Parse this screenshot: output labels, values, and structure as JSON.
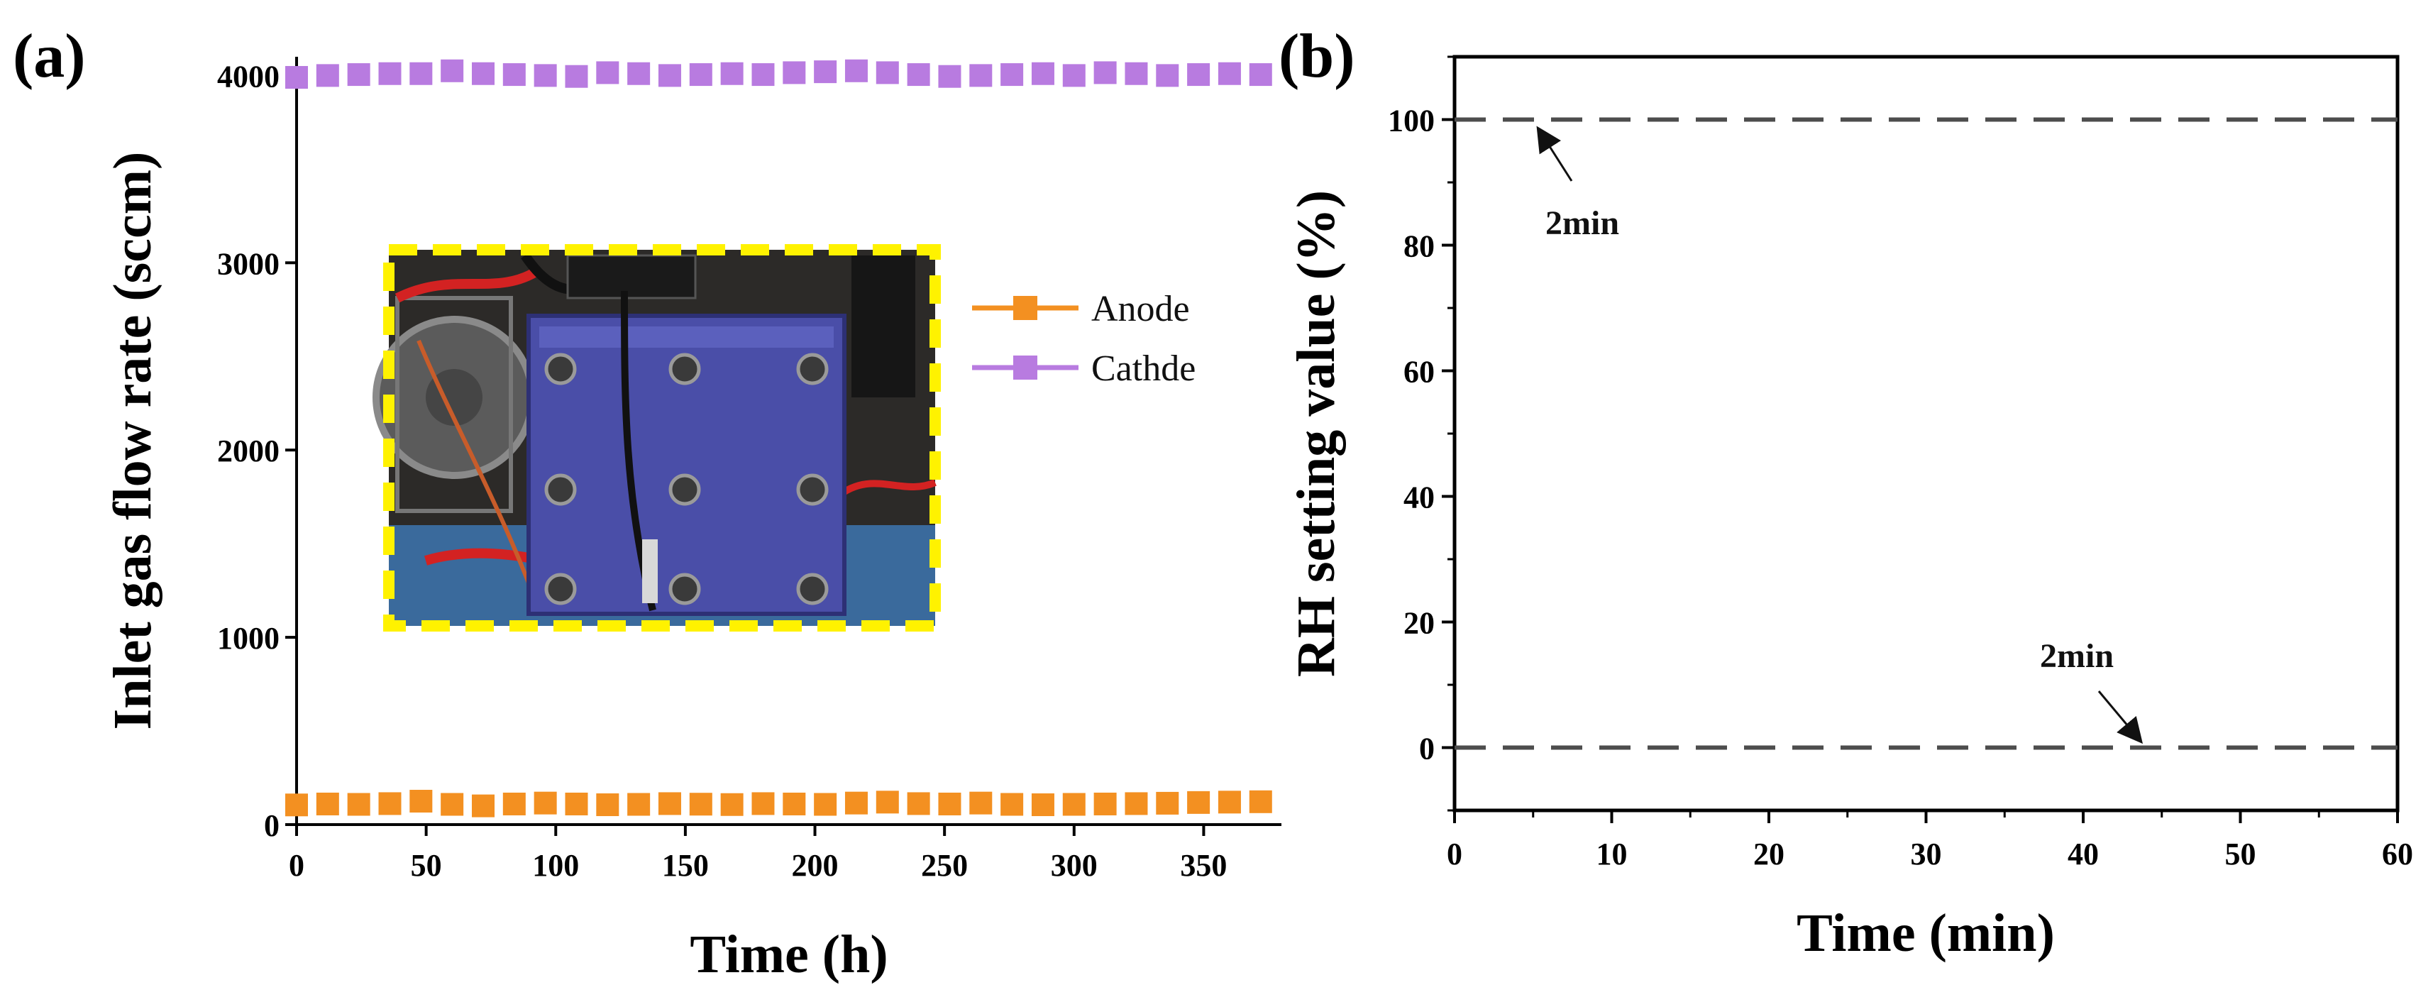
{
  "chart_data": [
    {
      "panel": "(a)",
      "type": "scatter",
      "xlabel": "Time (h)",
      "ylabel": "Inlet gas flow rate (sccm)",
      "xlim": [
        0,
        380
      ],
      "ylim": [
        0,
        4100
      ],
      "xticks": [
        0,
        50,
        100,
        150,
        200,
        250,
        300,
        350
      ],
      "yticks": [
        0,
        1000,
        2000,
        3000,
        4000
      ],
      "legend_position": "center-right",
      "series": [
        {
          "name": "Anode",
          "color": "#f39021",
          "marker": "square-line",
          "x": [
            0,
            12,
            24,
            36,
            48,
            60,
            72,
            84,
            96,
            108,
            120,
            132,
            144,
            156,
            168,
            180,
            192,
            204,
            216,
            228,
            240,
            252,
            264,
            276,
            288,
            300,
            312,
            324,
            336,
            348,
            360,
            372
          ],
          "y": [
            105,
            110,
            108,
            112,
            125,
            108,
            100,
            110,
            115,
            110,
            106,
            108,
            112,
            109,
            107,
            112,
            110,
            108,
            115,
            120,
            112,
            110,
            115,
            108,
            106,
            108,
            110,
            112,
            114,
            118,
            120,
            122
          ]
        },
        {
          "name": "Cathde",
          "color": "#b87be0",
          "marker": "square-line",
          "x": [
            0,
            12,
            24,
            36,
            48,
            60,
            72,
            84,
            96,
            108,
            120,
            132,
            144,
            156,
            168,
            180,
            192,
            204,
            216,
            228,
            240,
            252,
            264,
            276,
            288,
            300,
            312,
            324,
            336,
            348,
            360,
            372
          ],
          "y": [
            3990,
            4000,
            4005,
            4010,
            4010,
            4025,
            4010,
            4005,
            4000,
            3995,
            4015,
            4010,
            4000,
            4005,
            4010,
            4005,
            4015,
            4020,
            4025,
            4015,
            4005,
            3995,
            4000,
            4005,
            4010,
            4000,
            4015,
            4010,
            4000,
            4005,
            4010,
            4005
          ]
        }
      ],
      "inset": "photo of fuel cell test stack with bolts and wiring",
      "inset_border_color": "#fff200"
    },
    {
      "panel": "(b)",
      "type": "line",
      "xlabel": "Time (min)",
      "ylabel": "RH setting value (%)",
      "xlim": [
        0,
        60
      ],
      "ylim": [
        -10,
        110
      ],
      "xticks": [
        0,
        10,
        20,
        30,
        40,
        50,
        60
      ],
      "yticks": [
        0,
        20,
        40,
        60,
        80,
        100
      ],
      "series": [
        {
          "name": "",
          "style": "dashed",
          "color": "#4d4d4d",
          "x": [
            0,
            60
          ],
          "y": [
            100,
            100
          ]
        },
        {
          "name": "",
          "style": "dashed",
          "color": "#4d4d4d",
          "x": [
            0,
            60
          ],
          "y": [
            0,
            0
          ]
        }
      ],
      "annotations": [
        {
          "text": "2min",
          "point": [
            5,
            100
          ]
        },
        {
          "text": "2min",
          "point": [
            43.8,
            0
          ]
        }
      ]
    }
  ]
}
